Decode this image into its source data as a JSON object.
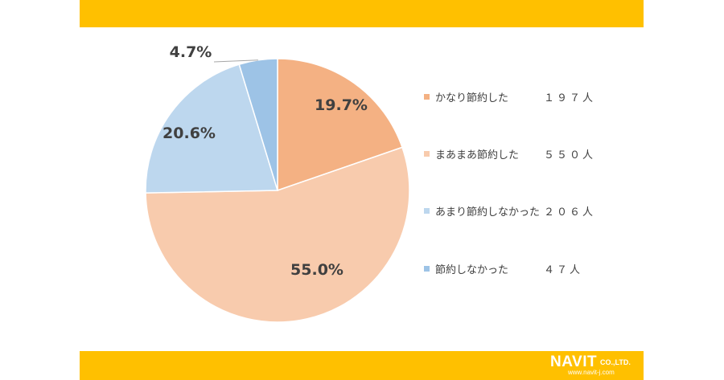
{
  "chart_data": {
    "type": "pie",
    "title": "",
    "slices": [
      {
        "label": "かなり節約した",
        "percent": 19.7,
        "percent_label": "19.7%",
        "count_label": "１９７人",
        "color": "#F4B183"
      },
      {
        "label": "まあまあ節約した",
        "percent": 55.0,
        "percent_label": "55.0%",
        "count_label": "５５０人",
        "color": "#F8CBAD"
      },
      {
        "label": "あまり節約しなかった",
        "percent": 20.6,
        "percent_label": "20.6%",
        "count_label": "２０６人",
        "color": "#BDD7EE"
      },
      {
        "label": "節約しなかった",
        "percent": 4.7,
        "percent_label": "4.7%",
        "count_label": "４７人",
        "color": "#9DC3E6"
      }
    ],
    "legend_position": "right"
  },
  "colors": {
    "band": "#FFC000",
    "text": "#404040"
  },
  "branding": {
    "logo_main": "NAVIT",
    "logo_suffix": "CO.,LTD.",
    "logo_url": "www.navit-j.com"
  }
}
